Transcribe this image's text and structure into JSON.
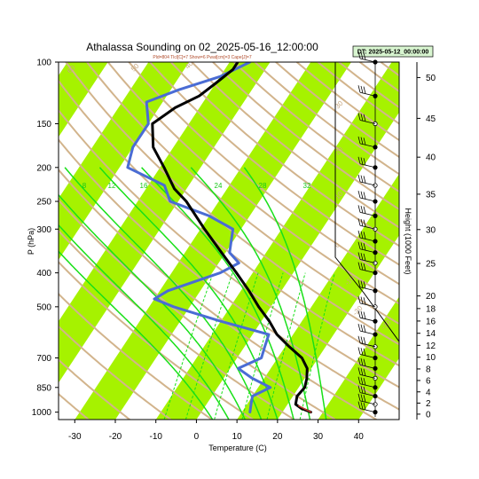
{
  "title": "Athalassa Sounding on 02_2025-05-16_12:00:00",
  "subtitle": "Pld=804 Tlcl[C]=7 Show=6 Pwat[cm]=3 Cape[J]=7",
  "dt_label": "DT: 2025-05-12_00:00:00",
  "colors": {
    "temperature": "#000000",
    "dewpoint": "#4a6cd4",
    "surface_segment": "#c0392b",
    "isotherm_band": "#a6f200",
    "dry_adiabat": "#d2b48c",
    "moist_adiabat": "#18e018",
    "mixing_ratio": "#18e018"
  },
  "chart_data": {
    "type": "skew-t",
    "xlabel": "Temperature (C)",
    "ylabel": "P (hPa)",
    "y2label": "Height (1000 Feet)",
    "xticks": [
      "-30",
      "-20",
      "-10",
      "0",
      "10",
      "20",
      "30",
      "40"
    ],
    "pressure_ticks": [
      "100",
      "150",
      "200",
      "250",
      "300",
      "400",
      "500",
      "700",
      "850",
      "1000"
    ],
    "height_ticks": [
      "50",
      "45",
      "40",
      "35",
      "30",
      "25",
      "20",
      "18",
      "16",
      "14",
      "12",
      "10",
      "8",
      "6",
      "4",
      "2",
      "0"
    ],
    "xlim": [
      -34,
      50
    ],
    "ylim_hpa": [
      1050,
      100
    ],
    "dry_adiabat_labels": [
      "60",
      "50",
      "40",
      "30",
      "20",
      "10",
      "0",
      "-10",
      "-20",
      "-30"
    ],
    "moist_adiabat_labels": [
      "8",
      "12",
      "16",
      "24",
      "28",
      "32"
    ],
    "temperature_profile": [
      {
        "p": 1000,
        "t": 27
      },
      {
        "p": 975,
        "t": 24
      },
      {
        "p": 950,
        "t": 22
      },
      {
        "p": 900,
        "t": 21
      },
      {
        "p": 850,
        "t": 21.5
      },
      {
        "p": 800,
        "t": 20.5
      },
      {
        "p": 750,
        "t": 19
      },
      {
        "p": 700,
        "t": 16
      },
      {
        "p": 650,
        "t": 11
      },
      {
        "p": 600,
        "t": 6
      },
      {
        "p": 550,
        "t": 2
      },
      {
        "p": 500,
        "t": -3
      },
      {
        "p": 450,
        "t": -8
      },
      {
        "p": 400,
        "t": -14
      },
      {
        "p": 350,
        "t": -21
      },
      {
        "p": 300,
        "t": -29
      },
      {
        "p": 250,
        "t": -38
      },
      {
        "p": 230,
        "t": -43
      },
      {
        "p": 200,
        "t": -49
      },
      {
        "p": 175,
        "t": -55
      },
      {
        "p": 150,
        "t": -59
      },
      {
        "p": 135,
        "t": -56
      },
      {
        "p": 125,
        "t": -52
      },
      {
        "p": 115,
        "t": -50
      },
      {
        "p": 105,
        "t": -48
      },
      {
        "p": 100,
        "t": -48
      }
    ],
    "dewpoint_profile": [
      {
        "p": 1000,
        "t": 12
      },
      {
        "p": 950,
        "t": 11
      },
      {
        "p": 900,
        "t": 10
      },
      {
        "p": 850,
        "t": 13
      },
      {
        "p": 800,
        "t": 7
      },
      {
        "p": 750,
        "t": 2
      },
      {
        "p": 700,
        "t": 6
      },
      {
        "p": 650,
        "t": 5
      },
      {
        "p": 600,
        "t": 4
      },
      {
        "p": 550,
        "t": -10
      },
      {
        "p": 500,
        "t": -24
      },
      {
        "p": 475,
        "t": -30
      },
      {
        "p": 450,
        "t": -28
      },
      {
        "p": 400,
        "t": -18
      },
      {
        "p": 375,
        "t": -15
      },
      {
        "p": 350,
        "t": -19
      },
      {
        "p": 300,
        "t": -22
      },
      {
        "p": 275,
        "t": -30
      },
      {
        "p": 250,
        "t": -42
      },
      {
        "p": 225,
        "t": -46
      },
      {
        "p": 200,
        "t": -58
      },
      {
        "p": 175,
        "t": -60
      },
      {
        "p": 150,
        "t": -60
      },
      {
        "p": 130,
        "t": -64
      },
      {
        "p": 120,
        "t": -58
      },
      {
        "p": 110,
        "t": -50
      },
      {
        "p": 100,
        "t": -45
      }
    ],
    "surface_segment": [
      {
        "p": 1000,
        "t": 27
      },
      {
        "p": 960,
        "t": 23
      }
    ]
  }
}
